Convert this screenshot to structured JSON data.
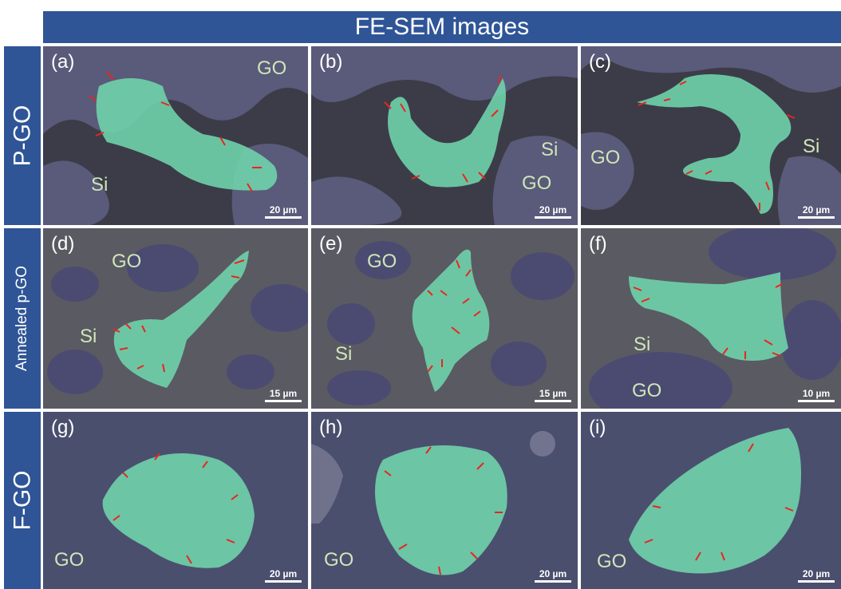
{
  "header": {
    "title": "FE-SEM images"
  },
  "rows": [
    {
      "label": "P-GO"
    },
    {
      "label": "Annealed p-GO"
    },
    {
      "label": "F-GO"
    }
  ],
  "panels": [
    {
      "label": "(a)",
      "scale": "20 µm",
      "materials": [
        "GO",
        "Si"
      ]
    },
    {
      "label": "(b)",
      "scale": "20 µm",
      "materials": [
        "Si",
        "GO"
      ]
    },
    {
      "label": "(c)",
      "scale": "20 µm",
      "materials": [
        "GO",
        "Si"
      ]
    },
    {
      "label": "(d)",
      "scale": "15 µm",
      "materials": [
        "GO",
        "Si"
      ]
    },
    {
      "label": "(e)",
      "scale": "15 µm",
      "materials": [
        "GO",
        "Si"
      ]
    },
    {
      "label": "(f)",
      "scale": "10 µm",
      "materials": [
        "Si",
        "GO"
      ]
    },
    {
      "label": "(g)",
      "scale": "20 µm",
      "materials": [
        "GO"
      ]
    },
    {
      "label": "(h)",
      "scale": "20 µm",
      "materials": [
        "GO"
      ]
    },
    {
      "label": "(i)",
      "scale": "20 µm",
      "materials": [
        "GO"
      ]
    }
  ],
  "colors": {
    "header": "#2f5597",
    "cell": "#6fcfa8",
    "arrow": "#e8251f",
    "label_text": "#cfe6b8"
  }
}
